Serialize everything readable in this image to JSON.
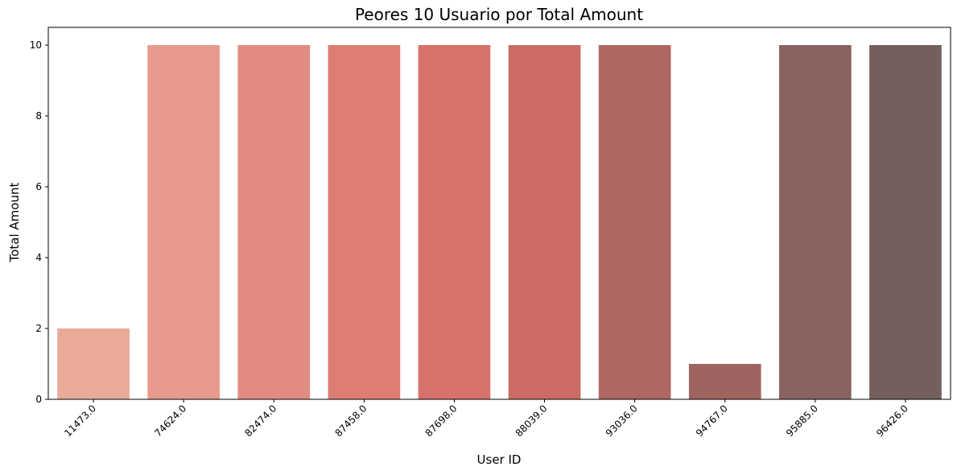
{
  "chart_data": {
    "type": "bar",
    "title": "Peores 10 Usuario por Total Amount",
    "xlabel": "User ID",
    "ylabel": "Total Amount",
    "categories": [
      "11473.0",
      "74624.0",
      "82474.0",
      "87458.0",
      "87698.0",
      "88039.0",
      "93036.0",
      "94767.0",
      "95885.0",
      "96426.0"
    ],
    "values": [
      2,
      10,
      10,
      10,
      10,
      10,
      10,
      1,
      10,
      10
    ],
    "colors": [
      "#e9aa98",
      "#e89b8d",
      "#e28c81",
      "#dc7e74",
      "#d7726b",
      "#cb6b65",
      "#b06661",
      "#9e6461",
      "#896360",
      "#735f5d"
    ],
    "ylim": [
      0,
      10.5
    ],
    "yticks": [
      0,
      2,
      4,
      6,
      8,
      10
    ],
    "grid": false
  }
}
